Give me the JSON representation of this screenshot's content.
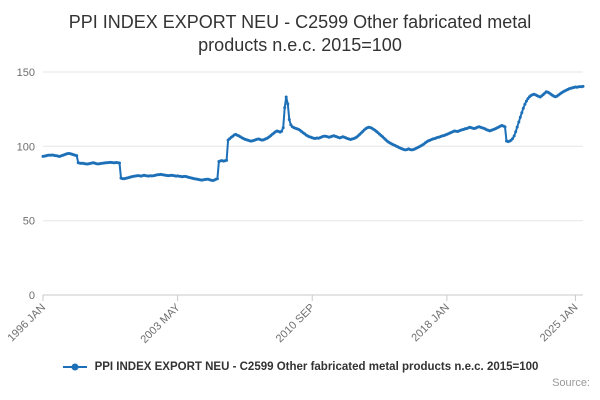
{
  "chart": {
    "title": "PPI INDEX EXPORT NEU - C2599 Other fabricated metal products n.e.c. 2015=100",
    "legend_label": "PPI INDEX EXPORT NEU - C2599 Other fabricated metal products n.e.c. 2015=100",
    "source_label": "Source:"
  },
  "chart_data": {
    "type": "line",
    "title": "PPI INDEX EXPORT NEU - C2599 Other fabricated metal products n.e.c. 2015=100",
    "series_name": "PPI INDEX EXPORT NEU - C2599 Other fabricated metal products n.e.c. 2015=100",
    "frequency": "monthly",
    "start_month": "1996 JAN",
    "end_month": "2025 JUN",
    "x_tick_labels": [
      "1996 JAN",
      "2003 MAY",
      "2010 SEP",
      "2018 JAN",
      "2025 JAN"
    ],
    "x_tick_month_offsets": [
      0,
      88,
      176,
      264,
      348
    ],
    "y_ticks": [
      0,
      50,
      100,
      150
    ],
    "ylim": [
      0,
      150
    ],
    "grid": true,
    "legend_position": "bottom",
    "line_color": "#1d70b8",
    "grid_color": "#e6e6e6",
    "axis_color": "#c9c9c9",
    "tick_text_color": "#6f6f6f",
    "values": [
      93.2,
      93.4,
      93.6,
      93.9,
      94.1,
      94.0,
      94.2,
      94.0,
      93.8,
      93.6,
      93.3,
      93.2,
      93.6,
      94.0,
      94.4,
      94.8,
      95.1,
      95.2,
      95.0,
      94.7,
      94.3,
      94.0,
      93.8,
      89.0,
      88.7,
      88.5,
      88.6,
      88.4,
      88.2,
      88.1,
      88.3,
      88.5,
      88.8,
      88.9,
      88.6,
      88.3,
      88.2,
      88.3,
      88.5,
      88.6,
      88.8,
      88.9,
      89.0,
      89.1,
      89.2,
      89.1,
      89.0,
      89.0,
      89.1,
      89.0,
      88.8,
      78.6,
      78.3,
      78.2,
      78.4,
      78.7,
      79.0,
      79.3,
      79.6,
      79.8,
      80.0,
      80.1,
      80.3,
      80.2,
      80.0,
      80.2,
      80.5,
      80.3,
      80.1,
      80.0,
      80.2,
      80.1,
      80.2,
      80.4,
      80.7,
      80.9,
      81.0,
      81.1,
      80.9,
      80.8,
      80.6,
      80.4,
      80.3,
      80.4,
      80.6,
      80.4,
      80.2,
      80.0,
      80.1,
      79.9,
      79.8,
      79.6,
      79.7,
      79.8,
      79.5,
      79.2,
      79.0,
      78.7,
      78.4,
      78.2,
      78.0,
      77.8,
      77.6,
      77.4,
      77.3,
      77.5,
      77.7,
      77.9,
      77.8,
      77.5,
      77.2,
      77.0,
      77.3,
      77.8,
      78.2,
      89.8,
      90.2,
      90.4,
      90.1,
      90.3,
      90.6,
      104.2,
      105.1,
      106.0,
      106.8,
      107.6,
      108.0,
      107.5,
      107.0,
      106.4,
      105.8,
      105.3,
      104.8,
      104.4,
      104.1,
      103.8,
      103.5,
      103.7,
      104.0,
      104.4,
      104.8,
      104.9,
      104.6,
      104.2,
      104.3,
      104.7,
      105.2,
      105.8,
      106.5,
      107.3,
      108.2,
      109.0,
      109.8,
      110.3,
      110.0,
      109.6,
      110.2,
      112.5,
      126.0,
      133.2,
      128.5,
      118.0,
      114.5,
      113.2,
      112.6,
      112.2,
      111.8,
      111.4,
      110.8,
      110.0,
      109.2,
      108.4,
      107.6,
      107.0,
      106.5,
      106.2,
      105.8,
      105.5,
      105.3,
      105.6,
      105.4,
      105.8,
      106.2,
      106.6,
      106.9,
      106.7,
      106.4,
      106.1,
      106.5,
      106.8,
      107.1,
      106.8,
      106.4,
      106.0,
      105.7,
      106.0,
      106.4,
      106.1,
      105.7,
      105.3,
      104.9,
      104.6,
      104.9,
      105.2,
      105.6,
      106.2,
      107.0,
      108.0,
      109.0,
      110.0,
      111.0,
      111.9,
      112.5,
      112.9,
      112.6,
      112.1,
      111.5,
      110.8,
      110.0,
      109.1,
      108.2,
      107.3,
      106.4,
      105.4,
      104.4,
      103.5,
      102.8,
      102.2,
      101.6,
      101.1,
      100.6,
      100.1,
      99.6,
      99.1,
      98.6,
      98.2,
      97.8,
      97.6,
      97.9,
      98.3,
      97.9,
      97.6,
      97.8,
      98.2,
      98.7,
      99.2,
      99.7,
      100.3,
      100.9,
      101.6,
      102.4,
      103.2,
      103.7,
      104.1,
      104.6,
      105.0,
      105.2,
      105.6,
      106.0,
      106.2,
      106.6,
      107.0,
      107.2,
      107.6,
      108.0,
      108.5,
      109.0,
      109.4,
      109.9,
      110.3,
      110.1,
      110.0,
      110.4,
      110.8,
      111.1,
      111.4,
      111.8,
      112.0,
      112.4,
      112.8,
      112.5,
      112.2,
      112.0,
      112.3,
      112.8,
      113.2,
      112.9,
      112.5,
      112.1,
      111.7,
      111.2,
      110.8,
      110.4,
      110.7,
      111.1,
      111.5,
      112.0,
      112.5,
      113.0,
      113.6,
      114.0,
      113.6,
      113.1,
      103.6,
      103.2,
      103.5,
      104.1,
      105.2,
      107.0,
      109.8,
      113.0,
      116.4,
      119.5,
      122.6,
      125.6,
      128.3,
      130.4,
      132.1,
      133.3,
      134.2,
      134.7,
      135.0,
      134.6,
      134.1,
      133.6,
      133.2,
      133.9,
      134.8,
      135.8,
      136.7,
      136.4,
      135.9,
      135.1,
      134.3,
      133.7,
      133.3,
      133.8,
      134.5,
      135.3,
      136.0,
      136.6,
      137.2,
      137.7,
      138.2,
      138.7,
      139.1,
      139.3,
      139.6,
      139.9,
      139.7,
      140.0,
      140.2,
      140.1,
      140.3
    ]
  }
}
